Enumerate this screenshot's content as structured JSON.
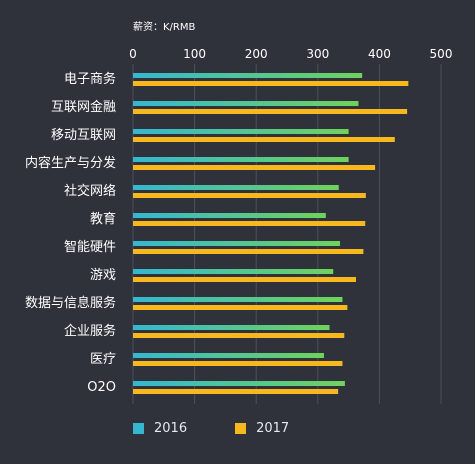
{
  "chart_data": {
    "type": "bar",
    "orientation": "horizontal",
    "title": "",
    "unit_label": "薪资：K/RMB",
    "categories": [
      "电子商务",
      "互联网金融",
      "移动互联网",
      "内容生产与分发",
      "社交网络",
      "教育",
      "智能硬件",
      "游戏",
      "数据与信息服务",
      "企业服务",
      "医疗",
      "O2O"
    ],
    "series": [
      {
        "name": "2016",
        "color": "#35b7d0",
        "values": [
          372,
          366,
          350,
          350,
          334,
          313,
          336,
          325,
          340,
          319,
          310,
          344
        ]
      },
      {
        "name": "2017",
        "color": "#f7b81e",
        "values": [
          447,
          445,
          425,
          393,
          378,
          377,
          374,
          362,
          348,
          343,
          340,
          333
        ]
      }
    ],
    "xlim": [
      0,
      500
    ],
    "xticks": [
      "0",
      "100",
      "200",
      "300",
      "400",
      "500"
    ],
    "grid": true,
    "legend_position": "bottom-left"
  }
}
